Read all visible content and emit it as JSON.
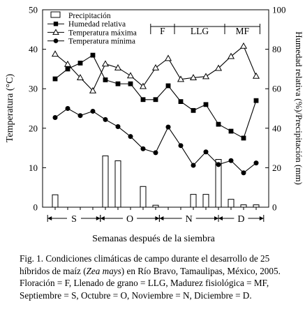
{
  "chart_data": {
    "type": "bar+line",
    "xlabel": "Semanas después de la siembra",
    "ylabel_left": "Temperatura (°C)",
    "ylabel_right": "Humedad relativa (%)/Precipitación (mm)",
    "ylim_left": [
      0,
      50
    ],
    "ylim_right": [
      0,
      100
    ],
    "y_ticks_left": [
      "0",
      "10",
      "20",
      "30",
      "40",
      "50"
    ],
    "y_ticks_right": [
      "0",
      "20",
      "40",
      "60",
      "80",
      "100"
    ],
    "weeks": [
      1,
      2,
      3,
      4,
      5,
      6,
      7,
      8,
      9,
      10,
      11,
      12,
      13,
      14,
      15,
      16,
      17
    ],
    "legend": [
      {
        "key": "precip",
        "label": "Precipitación",
        "marker": "bar"
      },
      {
        "key": "humidity",
        "label": "Humedad relativa",
        "marker": "square"
      },
      {
        "key": "tmax",
        "label": "Temperatura máxima",
        "marker": "triangle"
      },
      {
        "key": "tmin",
        "label": "Temperatura mínima",
        "marker": "circle"
      }
    ],
    "series": {
      "precip": [
        6.3,
        0,
        0,
        0,
        26,
        23.5,
        0,
        10.5,
        1,
        0,
        0,
        6.5,
        6.5,
        24.2,
        4,
        1.2,
        1.2
      ],
      "humidity": [
        65,
        70,
        73,
        77,
        64.5,
        62.5,
        62.5,
        54.5,
        54.5,
        61.5,
        53.5,
        49,
        52,
        42,
        38.5,
        35,
        54
      ],
      "tmax": [
        38.8,
        36.2,
        32.8,
        29.5,
        36.3,
        35.3,
        33.3,
        30.6,
        35.3,
        37.7,
        32.4,
        32.8,
        33.1,
        35.2,
        38.2,
        40.8,
        33.2
      ],
      "tmin": [
        22.7,
        25,
        23.2,
        24.3,
        22.2,
        20.4,
        17.9,
        14.8,
        13.8,
        20.3,
        15.6,
        10.6,
        14,
        10.8,
        11.8,
        8.7,
        11.2
      ]
    },
    "stages": [
      {
        "label": "F",
        "start_week": 8.6,
        "end_week": 10.5
      },
      {
        "label": "LLG",
        "start_week": 10.5,
        "end_week": 14.5
      },
      {
        "label": "MF",
        "start_week": 14.5,
        "end_week": 17.3
      }
    ],
    "months": [
      {
        "label": "S",
        "start_week": 0.4,
        "end_week": 4.6
      },
      {
        "label": "O",
        "start_week": 4.6,
        "end_week": 9.3
      },
      {
        "label": "N",
        "start_week": 9.3,
        "end_week": 14.0
      },
      {
        "label": "D",
        "start_week": 14.0,
        "end_week": 17.6
      }
    ],
    "grid": false,
    "legend_position": "top-left"
  },
  "caption": {
    "prefix": "Fig. 1. Condiciones climáticas de campo durante el desarrollo de 25 híbridos de maíz (",
    "species": "Zea mays",
    "suffix": ") en Río Bravo, Tamaulipas, México, 2005. Floración = F, Llenado de grano = LLG, Madurez fisiológica = MF, Septiembre = S, Octubre = O, Noviembre = N, Diciembre = D."
  }
}
